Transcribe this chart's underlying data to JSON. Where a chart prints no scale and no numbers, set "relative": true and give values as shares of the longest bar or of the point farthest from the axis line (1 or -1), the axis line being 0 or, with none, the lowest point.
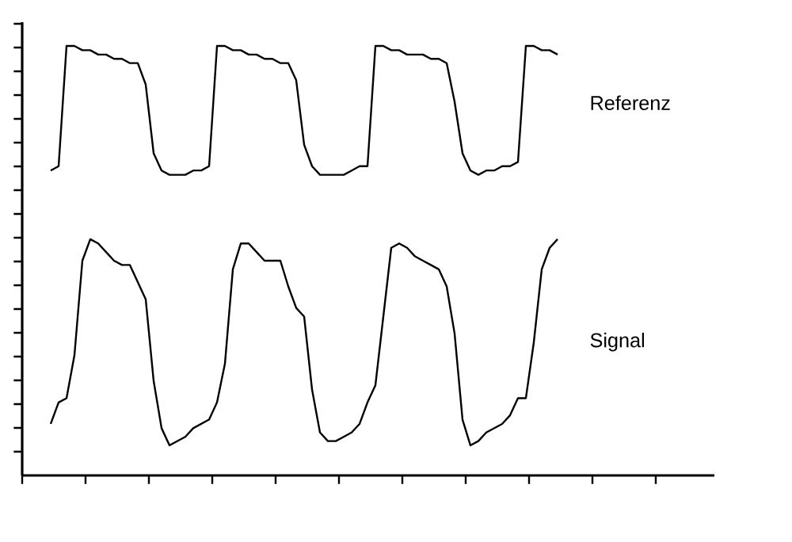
{
  "chart_data": {
    "type": "line",
    "relative": true,
    "categories": [
      null,
      null,
      null,
      null,
      null,
      null,
      null,
      null,
      null,
      null,
      null,
      null,
      null,
      null,
      null,
      null,
      null,
      null,
      null,
      null,
      null,
      null,
      null,
      null,
      null,
      null,
      null,
      null,
      null,
      null,
      null,
      null,
      null,
      null,
      null,
      null,
      null,
      null,
      null,
      null,
      null,
      null,
      null,
      null,
      null,
      null,
      null,
      null,
      null,
      null,
      null,
      null,
      null,
      null,
      null,
      null,
      null,
      null,
      null,
      null,
      null,
      null,
      null,
      null,
      null
    ],
    "series": [
      {
        "name": "Referenz",
        "color": "#000000",
        "values": [
          0.71,
          0.72,
          1.0,
          1.0,
          0.99,
          0.99,
          0.98,
          0.98,
          0.97,
          0.97,
          0.96,
          0.96,
          0.91,
          0.75,
          0.71,
          0.7,
          0.7,
          0.7,
          0.71,
          0.71,
          0.72,
          1.0,
          1.0,
          0.99,
          0.99,
          0.98,
          0.98,
          0.97,
          0.97,
          0.96,
          0.96,
          0.92,
          0.77,
          0.72,
          0.7,
          0.7,
          0.7,
          0.7,
          0.71,
          0.72,
          0.72,
          1.0,
          1.0,
          0.99,
          0.99,
          0.98,
          0.98,
          0.98,
          0.97,
          0.97,
          0.96,
          0.87,
          0.75,
          0.71,
          0.7,
          0.71,
          0.71,
          0.72,
          0.72,
          0.73,
          1.0,
          1.0,
          0.99,
          0.99,
          0.98
        ]
      },
      {
        "name": "Signal",
        "color": "#000000",
        "values": [
          0.12,
          0.17,
          0.18,
          0.28,
          0.5,
          0.55,
          0.54,
          0.52,
          0.5,
          0.49,
          0.49,
          0.45,
          0.41,
          0.22,
          0.11,
          0.07,
          0.08,
          0.09,
          0.11,
          0.12,
          0.13,
          0.17,
          0.26,
          0.48,
          0.54,
          0.54,
          0.52,
          0.5,
          0.5,
          0.5,
          0.44,
          0.39,
          0.37,
          0.2,
          0.1,
          0.08,
          0.08,
          0.09,
          0.1,
          0.12,
          0.17,
          0.21,
          0.37,
          0.53,
          0.54,
          0.53,
          0.51,
          0.5,
          0.49,
          0.48,
          0.44,
          0.33,
          0.13,
          0.07,
          0.08,
          0.1,
          0.11,
          0.12,
          0.14,
          0.18,
          0.18,
          0.31,
          0.48,
          0.53,
          0.55
        ]
      }
    ]
  }
}
